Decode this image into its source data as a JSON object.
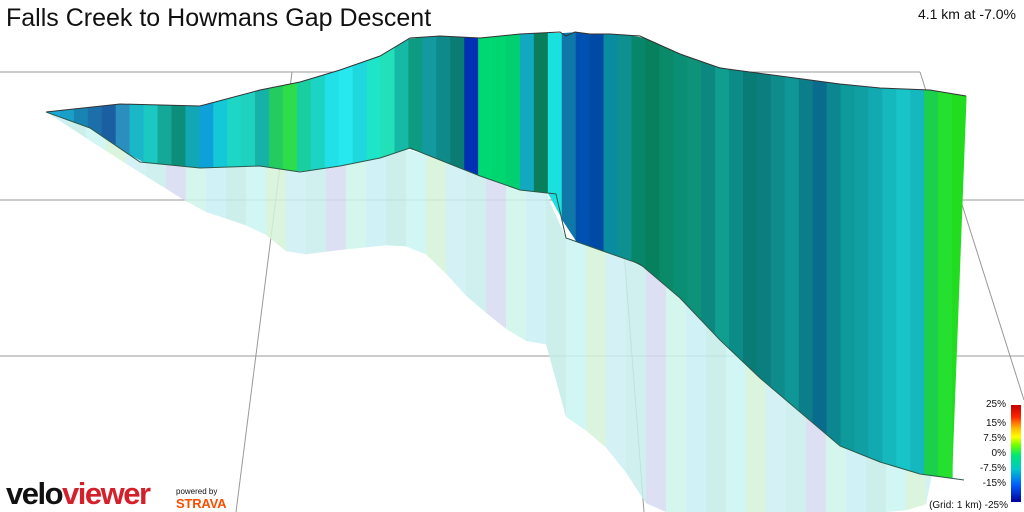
{
  "title": "Falls Creek to Howmans Gap Descent",
  "summary": "4.1 km at -7.0%",
  "logo": {
    "velo": "velo",
    "viewer": "viewer",
    "powered_by": "powered by",
    "strava": "STRAVA"
  },
  "legend": {
    "labels": [
      "25%",
      "15%",
      "7.5%",
      "0%",
      "-7.5%",
      "-15%",
      "-25%"
    ],
    "grid_note": "(Grid: 1 km)"
  },
  "chart_data": {
    "type": "area",
    "description_type": "3d-elevation-profile",
    "title": "Falls Creek to Howmans Gap Descent",
    "distance_km": 4.1,
    "average_gradient_pct": -7.0,
    "grid_km": 1,
    "color_scale": {
      "stops": [
        25,
        15,
        7.5,
        0,
        -7.5,
        -15,
        -25
      ],
      "colors": [
        "#c40000",
        "#ff2200",
        "#ffbb00",
        "#66ff00",
        "#00c8c8",
        "#0060ff",
        "#00009a"
      ]
    },
    "segment_colors": [
      "#1aa8d8",
      "#1a9fc9",
      "#1784b3",
      "#1c6fa8",
      "#1b5fa3",
      "#2a8fbf",
      "#19b7c8",
      "#1bc8c2",
      "#14a899",
      "#0d8e7a",
      "#12a7b4",
      "#0ea0d8",
      "#15c8d8",
      "#1dd6c6",
      "#1fd2c0",
      "#16b2a8",
      "#24cc60",
      "#2ddd4a",
      "#19cfa0",
      "#1bd4c4",
      "#22e0e8",
      "#26e8ee",
      "#1ed8de",
      "#1ee4c8",
      "#22e0b8",
      "#16b8a6",
      "#0d9c82",
      "#129aa0",
      "#0f8a8a",
      "#0a7c72",
      "#0030b4",
      "#00d874",
      "#00d670",
      "#00d070",
      "#12a8c0",
      "#0a7e5a",
      "#1ae0e0",
      "#1078a8",
      "#0050b0",
      "#004aa6",
      "#0a8ca0",
      "#0e9090",
      "#08866a",
      "#07805e",
      "#0a8a68",
      "#0b8f74",
      "#0e9278",
      "#0c8880",
      "#0f9e90",
      "#0c8c88",
      "#0a7c78",
      "#0b7e80",
      "#0e8c8c",
      "#0f9696",
      "#0c7e8a",
      "#0a6c8c",
      "#0c8690",
      "#0e9a9a",
      "#10a0a4",
      "#12aab0",
      "#15b8bc",
      "#18c4c8",
      "#16b8c0",
      "#1cd04c",
      "#26e030",
      "#22dc20"
    ],
    "shade_colors": [
      "#c8f0f4",
      "#c4ece8",
      "#caf4f2",
      "#d4f2d8",
      "#cdeef4",
      "#c8ecec",
      "#d6daf0",
      "#cdf4ea"
    ]
  }
}
